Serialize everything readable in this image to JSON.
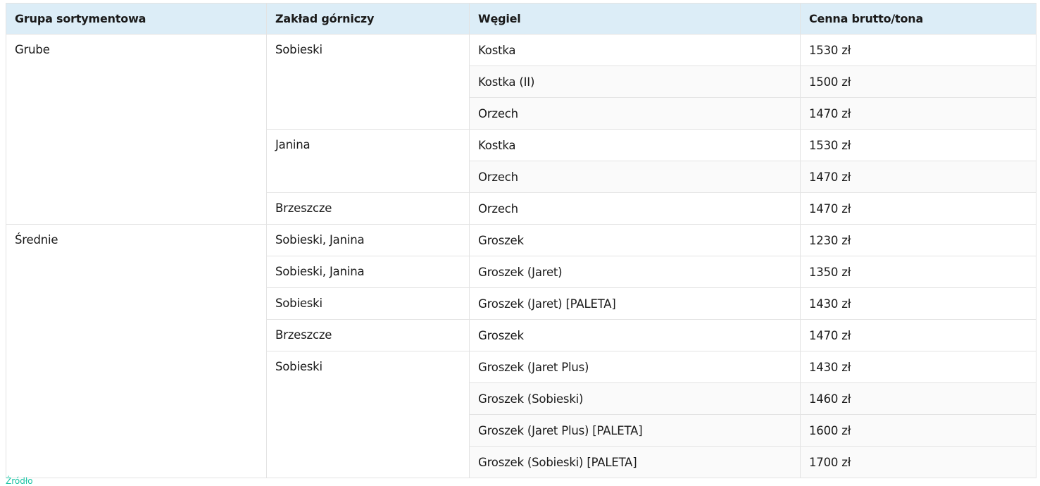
{
  "table": {
    "headers": [
      "Grupa sortymentowa",
      "Zakład górniczy",
      "Węgiel",
      "Cenna brutto/tona"
    ],
    "groups": [
      {
        "name": "Grube",
        "mines": [
          {
            "name": "Sobieski",
            "coals": [
              {
                "coal": "Kostka",
                "price": "1530 zł"
              },
              {
                "coal": "Kostka (II)",
                "price": "1500 zł"
              },
              {
                "coal": "Orzech",
                "price": "1470 zł"
              }
            ]
          },
          {
            "name": "Janina",
            "coals": [
              {
                "coal": "Kostka",
                "price": "1530 zł"
              },
              {
                "coal": "Orzech",
                "price": "1470 zł"
              }
            ]
          },
          {
            "name": "Brzeszcze",
            "coals": [
              {
                "coal": "Orzech",
                "price": "1470 zł"
              }
            ]
          }
        ]
      },
      {
        "name": "Średnie",
        "mines": [
          {
            "name": "Sobieski, Janina",
            "coals": [
              {
                "coal": "Groszek",
                "price": "1230 zł"
              }
            ]
          },
          {
            "name": "Sobieski, Janina",
            "coals": [
              {
                "coal": "Groszek (Jaret)",
                "price": "1350 zł"
              }
            ]
          },
          {
            "name": "Sobieski",
            "coals": [
              {
                "coal": "Groszek (Jaret) [PALETA]",
                "price": "1430 zł"
              }
            ]
          },
          {
            "name": "Brzeszcze",
            "coals": [
              {
                "coal": "Groszek",
                "price": "1470 zł"
              }
            ]
          },
          {
            "name": "Sobieski",
            "coals": [
              {
                "coal": "Groszek (Jaret Plus)",
                "price": "1430 zł"
              },
              {
                "coal": "Groszek (Sobieski)",
                "price": "1460 zł"
              },
              {
                "coal": "Groszek (Jaret Plus) [PALETA]",
                "price": "1600 zł"
              },
              {
                "coal": "Groszek (Sobieski) [PALETA]",
                "price": "1700 zł"
              }
            ]
          }
        ]
      }
    ]
  },
  "footer": {
    "source_label": "Źródło"
  },
  "colors": {
    "header_bg": "#dcedf7",
    "link": "#19c3a3"
  }
}
